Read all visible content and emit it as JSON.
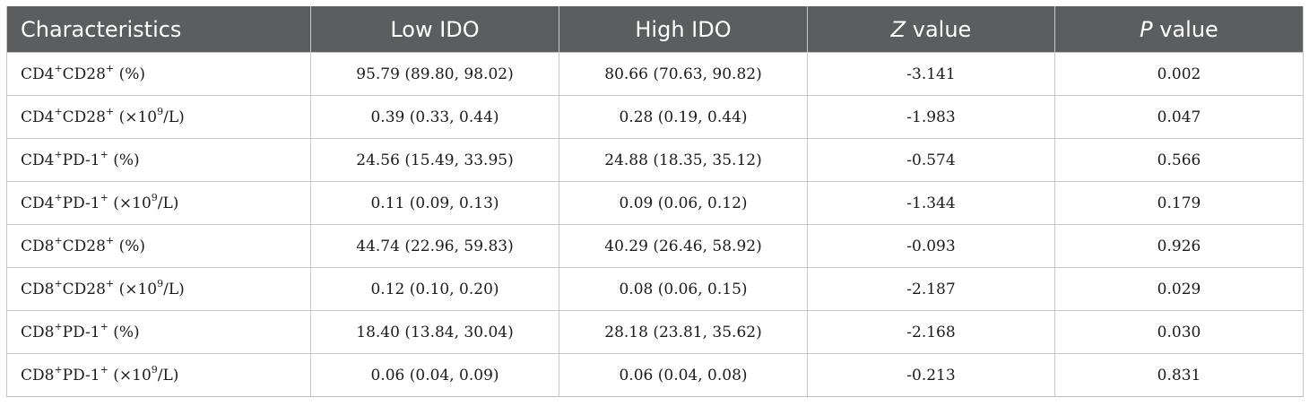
{
  "table": {
    "headers": [
      {
        "pre": "Characteristics",
        "ital": "",
        "post": ""
      },
      {
        "pre": "Low IDO",
        "ital": "",
        "post": ""
      },
      {
        "pre": "High IDO",
        "ital": "",
        "post": ""
      },
      {
        "pre": "",
        "ital": "Z",
        "post": " value"
      },
      {
        "pre": "",
        "ital": "P",
        "post": " value"
      }
    ],
    "rows": [
      {
        "cd": "CD4",
        "cd_sup": "+",
        "marker": "CD28",
        "marker_sup": "+",
        "unit_pre": " (%)",
        "unit_sup": "",
        "unit_post": "",
        "low": "95.79 (89.80, 98.02)",
        "high": "80.66 (70.63, 90.82)",
        "z": "-3.141",
        "p": "0.002"
      },
      {
        "cd": "CD4",
        "cd_sup": "+",
        "marker": "CD28",
        "marker_sup": "+",
        "unit_pre": " (×10",
        "unit_sup": "9",
        "unit_post": "/L)",
        "low": "0.39 (0.33, 0.44)",
        "high": "0.28 (0.19, 0.44)",
        "z": "-1.983",
        "p": "0.047"
      },
      {
        "cd": "CD4",
        "cd_sup": "+",
        "marker": "PD-1",
        "marker_sup": "+",
        "unit_pre": " (%)",
        "unit_sup": "",
        "unit_post": "",
        "low": "24.56 (15.49, 33.95)",
        "high": "24.88 (18.35, 35.12)",
        "z": "-0.574",
        "p": "0.566"
      },
      {
        "cd": "CD4",
        "cd_sup": "+",
        "marker": "PD-1",
        "marker_sup": "+",
        "unit_pre": " (×10",
        "unit_sup": "9",
        "unit_post": "/L)",
        "low": "0.11 (0.09, 0.13)",
        "high": "0.09 (0.06, 0.12)",
        "z": "-1.344",
        "p": "0.179"
      },
      {
        "cd": "CD8",
        "cd_sup": "+",
        "marker": "CD28",
        "marker_sup": "+",
        "unit_pre": " (%)",
        "unit_sup": "",
        "unit_post": "",
        "low": "44.74 (22.96, 59.83)",
        "high": "40.29 (26.46, 58.92)",
        "z": "-0.093",
        "p": "0.926"
      },
      {
        "cd": "CD8",
        "cd_sup": "+",
        "marker": "CD28",
        "marker_sup": "+",
        "unit_pre": " (×10",
        "unit_sup": "9",
        "unit_post": "/L)",
        "low": "0.12 (0.10, 0.20)",
        "high": "0.08 (0.06, 0.15)",
        "z": "-2.187",
        "p": "0.029"
      },
      {
        "cd": "CD8",
        "cd_sup": "+",
        "marker": "PD-1",
        "marker_sup": "+",
        "unit_pre": " (%)",
        "unit_sup": "",
        "unit_post": "",
        "low": "18.40 (13.84, 30.04)",
        "high": "28.18 (23.81, 35.62)",
        "z": "-2.168",
        "p": "0.030"
      },
      {
        "cd": "CD8",
        "cd_sup": "+",
        "marker": "PD-1",
        "marker_sup": "+",
        "unit_pre": " (×10",
        "unit_sup": "9",
        "unit_post": "/L)",
        "low": "0.06 (0.04, 0.09)",
        "high": "0.06 (0.04, 0.08)",
        "z": "-0.213",
        "p": "0.831"
      }
    ]
  },
  "colors": {
    "header_bg": "#5b5d5f",
    "header_text": "#ffffff",
    "grid_line": "#c8c8c8"
  }
}
